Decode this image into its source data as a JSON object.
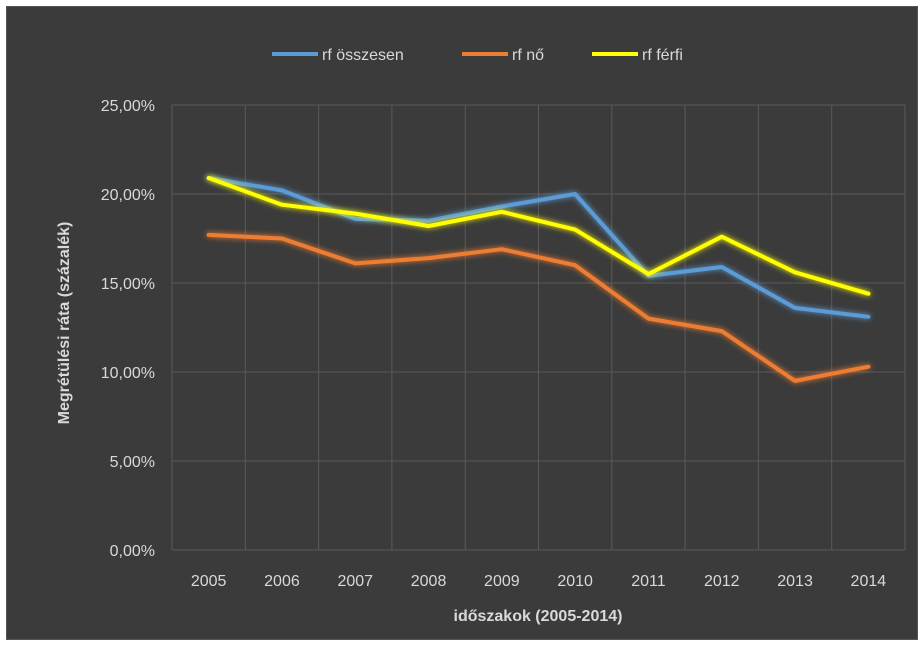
{
  "chart_data": {
    "type": "line",
    "x": [
      "2005",
      "2006",
      "2007",
      "2008",
      "2009",
      "2010",
      "2011",
      "2012",
      "2013",
      "2014"
    ],
    "series": [
      {
        "name": "rf összesen",
        "color": "#5b9bd5",
        "values": [
          20.9,
          20.2,
          18.6,
          18.5,
          19.3,
          20.0,
          15.4,
          15.9,
          13.6,
          13.1
        ]
      },
      {
        "name": "rf nő",
        "color": "#ed7d31",
        "values": [
          17.7,
          17.5,
          16.1,
          16.4,
          16.9,
          16.0,
          13.0,
          12.3,
          9.5,
          10.3
        ]
      },
      {
        "name": "rf férfi",
        "color": "#ffff00",
        "values": [
          20.9,
          19.4,
          18.9,
          18.2,
          19.0,
          18.0,
          15.5,
          17.6,
          15.6,
          14.4
        ]
      }
    ],
    "yticks": [
      "0,00%",
      "5,00%",
      "10,00%",
      "15,00%",
      "20,00%",
      "25,00%"
    ],
    "ylim": [
      0,
      25
    ],
    "xlabel": "időszakok (2005-2014)",
    "ylabel": "Megrétülési ráta (százalék)",
    "grid": true,
    "legend": "top"
  }
}
